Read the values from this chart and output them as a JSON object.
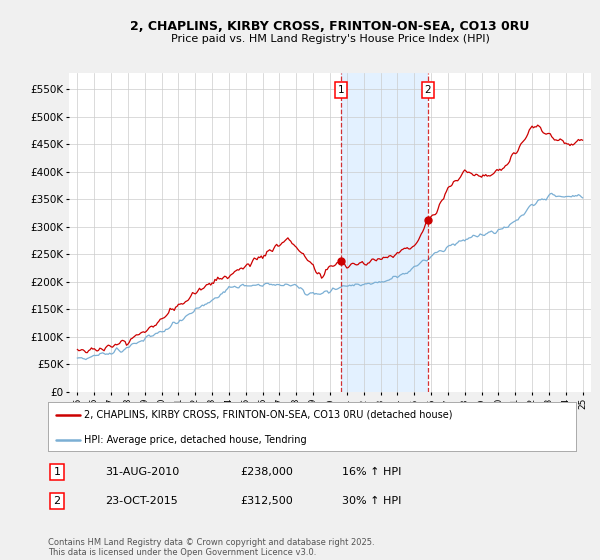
{
  "title_line1": "2, CHAPLINS, KIRBY CROSS, FRINTON-ON-SEA, CO13 0RU",
  "title_line2": "Price paid vs. HM Land Registry's House Price Index (HPI)",
  "bg_color": "#f0f0f0",
  "plot_bg_color": "#ffffff",
  "red_color": "#cc0000",
  "blue_color": "#7bafd4",
  "shade_color": "#ddeeff",
  "grid_color": "#cccccc",
  "sale1_date": "31-AUG-2010",
  "sale1_price": "£238,000",
  "sale1_hpi": "16% ↑ HPI",
  "sale2_date": "23-OCT-2015",
  "sale2_price": "£312,500",
  "sale2_hpi": "30% ↑ HPI",
  "legend_line1": "2, CHAPLINS, KIRBY CROSS, FRINTON-ON-SEA, CO13 0RU (detached house)",
  "legend_line2": "HPI: Average price, detached house, Tendring",
  "footnote": "Contains HM Land Registry data © Crown copyright and database right 2025.\nThis data is licensed under the Open Government Licence v3.0.",
  "ylim": [
    0,
    580000
  ],
  "yticks": [
    0,
    50000,
    100000,
    150000,
    200000,
    250000,
    300000,
    350000,
    400000,
    450000,
    500000,
    550000
  ],
  "ytick_labels": [
    "£0",
    "£50K",
    "£100K",
    "£150K",
    "£200K",
    "£250K",
    "£300K",
    "£350K",
    "£400K",
    "£450K",
    "£500K",
    "£550K"
  ],
  "sale1_x": 2010.66,
  "sale2_x": 2015.81,
  "sale1_y": 238000,
  "sale2_y": 312500,
  "xmin": 1994.5,
  "xmax": 2025.5,
  "xticks": [
    1995,
    1996,
    1997,
    1998,
    1999,
    2000,
    2001,
    2002,
    2003,
    2004,
    2005,
    2006,
    2007,
    2008,
    2009,
    2010,
    2011,
    2012,
    2013,
    2014,
    2015,
    2016,
    2017,
    2018,
    2019,
    2020,
    2021,
    2022,
    2023,
    2024,
    2025
  ]
}
